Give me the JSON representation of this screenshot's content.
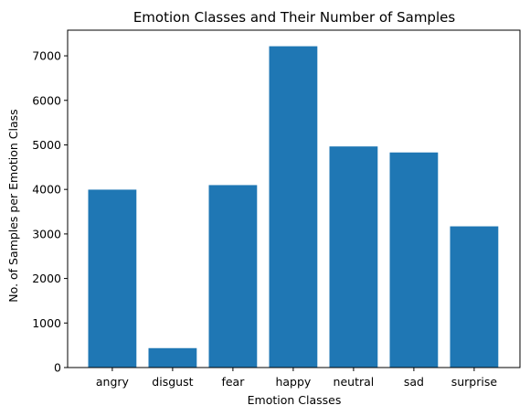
{
  "chart_data": {
    "type": "bar",
    "title": "Emotion Classes and Their Number of Samples",
    "xlabel": "Emotion Classes",
    "ylabel": "No. of Samples per Emotion Class",
    "categories": [
      "angry",
      "disgust",
      "fear",
      "happy",
      "neutral",
      "sad",
      "surprise"
    ],
    "values": [
      3995,
      436,
      4097,
      7215,
      4965,
      4830,
      3171
    ],
    "ylim": [
      0,
      7576
    ],
    "yticks": [
      0,
      1000,
      2000,
      3000,
      4000,
      5000,
      6000,
      7000
    ],
    "bar_color": "#1f77b4",
    "grid": false,
    "legend": false
  }
}
